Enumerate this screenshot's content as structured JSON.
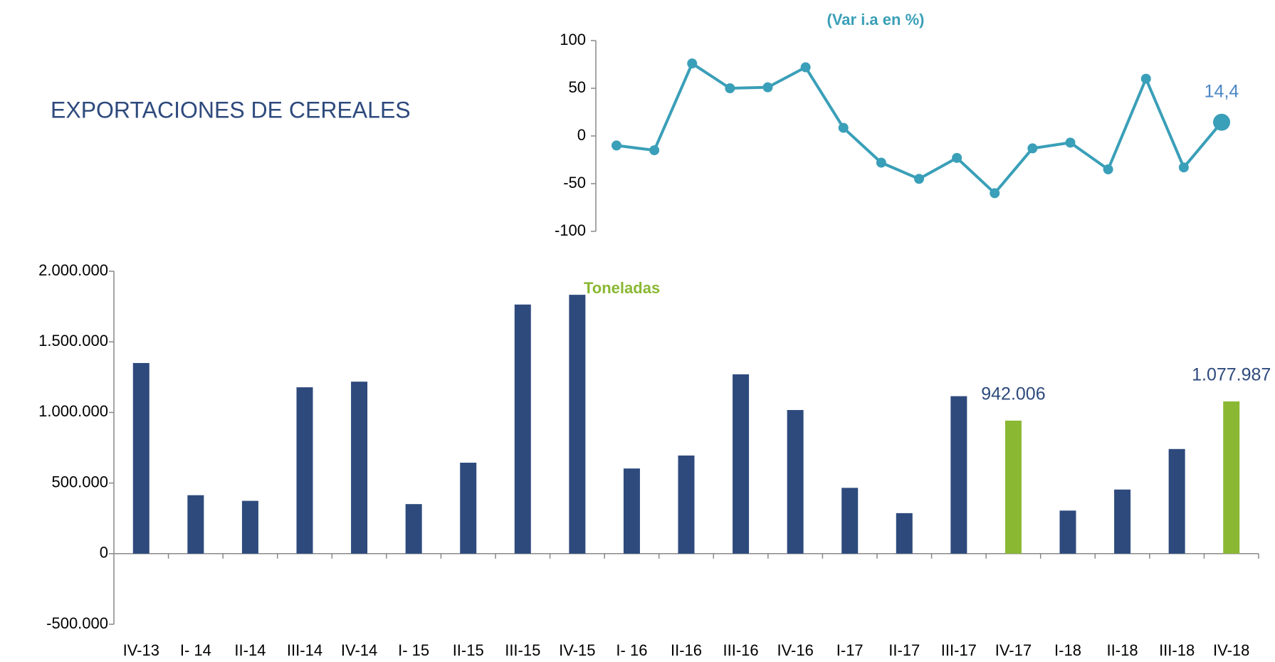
{
  "chart_data": [
    {
      "type": "bar",
      "title": "EXPORTACIONES DE CEREALES",
      "annotation": "Toneladas",
      "categories": [
        "IV-13",
        "I- 14",
        "II-14",
        "III-14",
        "IV-14",
        "I- 15",
        "II-15",
        "III-15",
        "IV-15",
        "I- 16",
        "II-16",
        "III-16",
        "IV-16",
        "I-17",
        "II-17",
        "III-17",
        "IV-17",
        "I-18",
        "II-18",
        "III-18",
        "IV-18"
      ],
      "values": [
        1350000,
        414000,
        374000,
        1178000,
        1218000,
        351000,
        644000,
        1764000,
        1833000,
        603000,
        695000,
        1270000,
        1017000,
        466000,
        287000,
        1115000,
        942006,
        305000,
        454000,
        741000,
        1077987
      ],
      "value_labels": [
        null,
        null,
        null,
        null,
        null,
        null,
        null,
        null,
        null,
        null,
        null,
        null,
        null,
        null,
        null,
        null,
        "942.006",
        null,
        null,
        null,
        "1.077.987"
      ],
      "colors": [
        "#2e4a7d",
        "#2e4a7d",
        "#2e4a7d",
        "#2e4a7d",
        "#2e4a7d",
        "#2e4a7d",
        "#2e4a7d",
        "#2e4a7d",
        "#2e4a7d",
        "#2e4a7d",
        "#2e4a7d",
        "#2e4a7d",
        "#2e4a7d",
        "#2e4a7d",
        "#2e4a7d",
        "#2e4a7d",
        "#8ab833",
        "#2e4a7d",
        "#2e4a7d",
        "#2e4a7d",
        "#8ab833"
      ],
      "ylim": [
        -500000,
        2000000
      ],
      "yticks": [
        {
          "value": -500000,
          "label": "-500.000"
        },
        0,
        {
          "value": 500000,
          "label": "500.000"
        },
        {
          "value": 1000000,
          "label": "1.000.000"
        },
        {
          "value": 1500000,
          "label": "1.500.000"
        },
        {
          "value": 2000000,
          "label": "2.000.000"
        }
      ],
      "grid": false
    },
    {
      "type": "line",
      "title": "(Var i.a en %)",
      "color": "#3a9fb8",
      "values": [
        -10,
        -15,
        76,
        50,
        51,
        72,
        8.5,
        -28,
        -45,
        -23,
        -60,
        -13,
        -7,
        -35,
        60,
        -33,
        14.4
      ],
      "value_labels": [
        null,
        null,
        null,
        null,
        null,
        null,
        null,
        null,
        null,
        null,
        null,
        null,
        null,
        null,
        null,
        null,
        "14,4"
      ],
      "ylim": [
        -100,
        100
      ],
      "yticks": [
        -100,
        -50,
        0,
        50,
        100
      ],
      "grid": false
    }
  ]
}
